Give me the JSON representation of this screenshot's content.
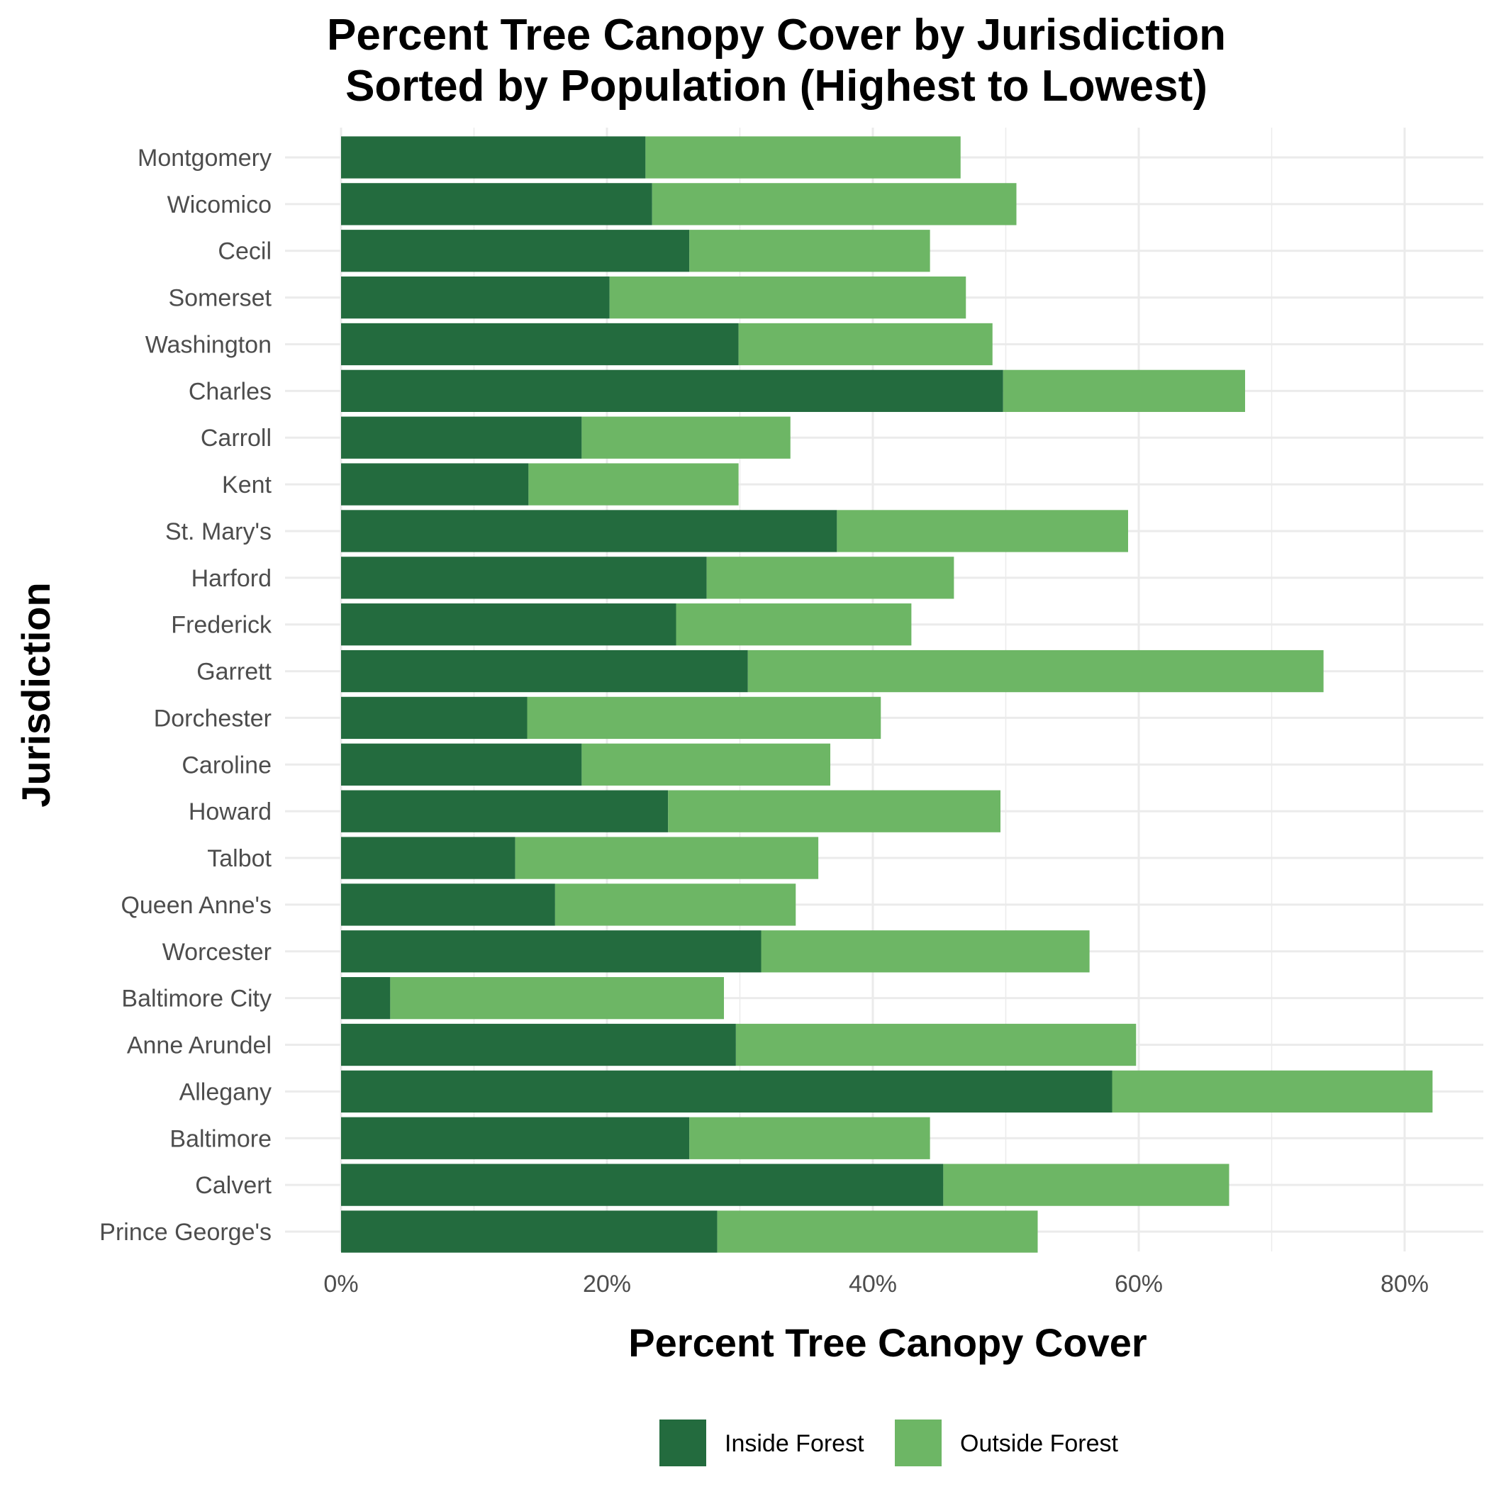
{
  "chart_data": {
    "type": "bar",
    "orientation": "horizontal",
    "stacked": true,
    "title": "Percent Tree Canopy Cover by Jurisdiction",
    "subtitle": "Sorted by Population (Highest to Lowest)",
    "xlabel": "Percent Tree Canopy Cover",
    "ylabel": "Jurisdiction",
    "xlim": [
      0,
      84
    ],
    "x_ticks": [
      0,
      20,
      40,
      60,
      80
    ],
    "x_tick_labels": [
      "0%",
      "20%",
      "40%",
      "60%",
      "80%"
    ],
    "grid": true,
    "legend_position": "bottom",
    "categories": [
      "Montgomery",
      "Wicomico",
      "Cecil",
      "Somerset",
      "Washington",
      "Charles",
      "Carroll",
      "Kent",
      "St. Mary's",
      "Harford",
      "Frederick",
      "Garrett",
      "Dorchester",
      "Caroline",
      "Howard",
      "Talbot",
      "Queen Anne's",
      "Worcester",
      "Baltimore City",
      "Anne Arundel",
      "Allegany",
      "Baltimore",
      "Calvert",
      "Prince George's"
    ],
    "series": [
      {
        "name": "Inside Forest",
        "color": "#236b3e",
        "values": [
          22.9,
          23.4,
          26.2,
          20.2,
          29.9,
          49.8,
          18.1,
          14.1,
          37.3,
          27.5,
          25.2,
          30.6,
          14.0,
          18.1,
          24.6,
          13.1,
          16.1,
          31.6,
          3.7,
          29.7,
          58.0,
          26.2,
          45.3,
          28.3
        ]
      },
      {
        "name": "Outside Forest",
        "color": "#6db665",
        "values": [
          23.7,
          27.4,
          18.1,
          26.8,
          19.1,
          18.2,
          15.7,
          15.8,
          21.9,
          18.6,
          17.7,
          43.3,
          26.6,
          18.7,
          25.0,
          22.8,
          18.1,
          24.7,
          25.1,
          30.1,
          24.1,
          18.1,
          21.5,
          24.1
        ]
      }
    ]
  }
}
